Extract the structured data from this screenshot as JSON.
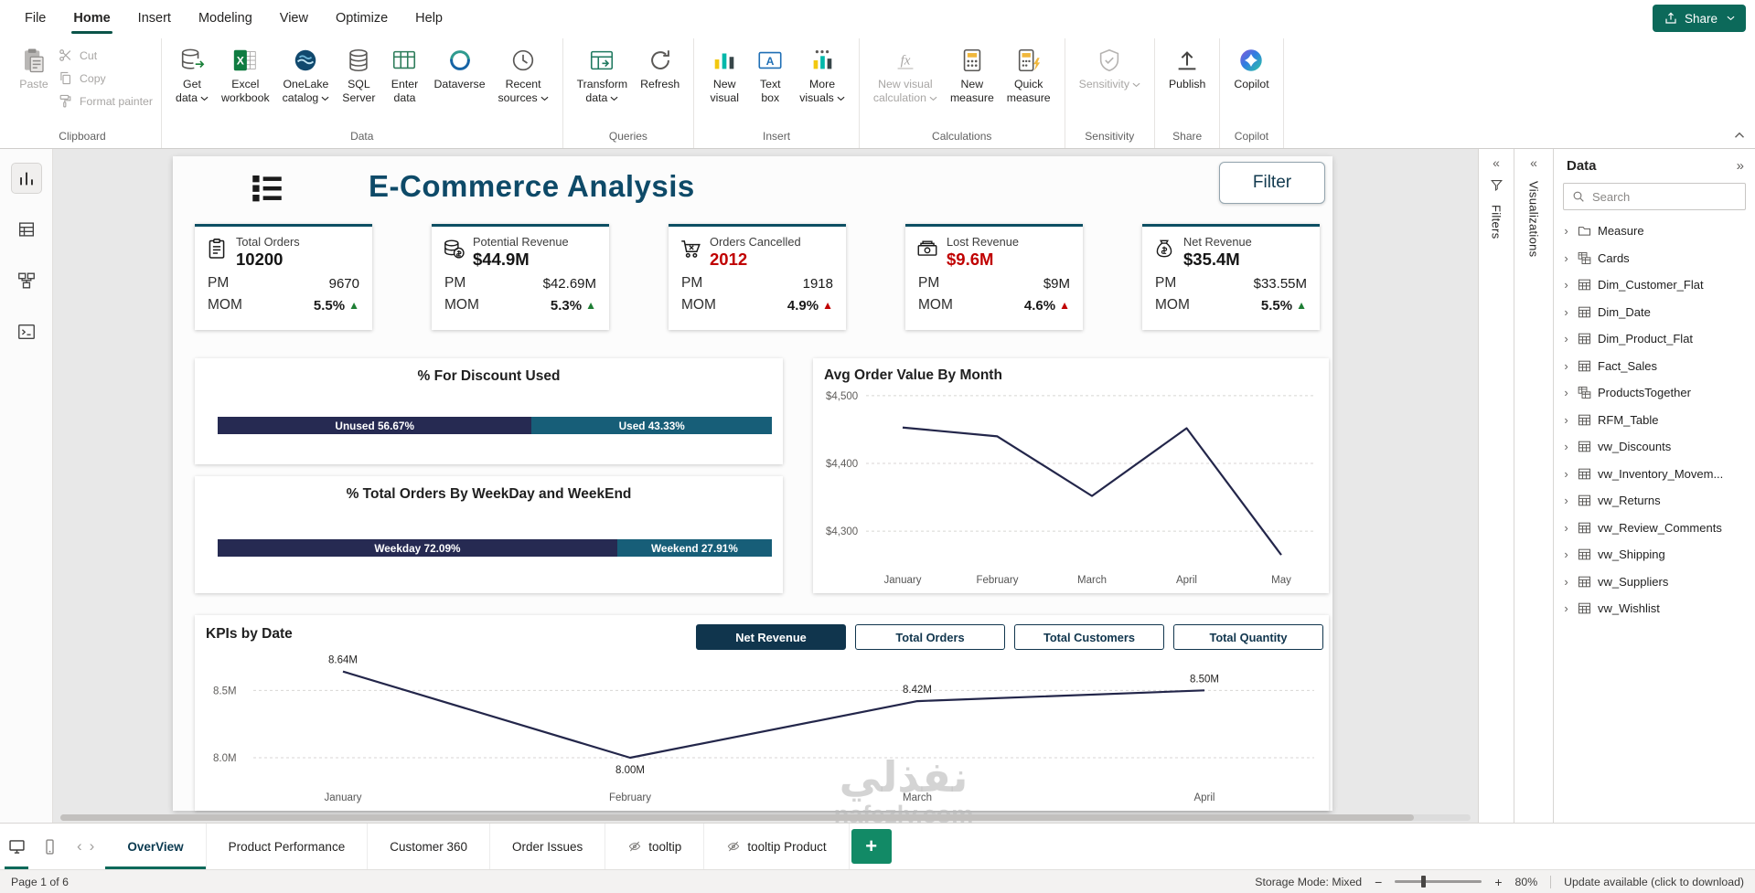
{
  "menubar": {
    "items": [
      "File",
      "Home",
      "Insert",
      "Modeling",
      "View",
      "Optimize",
      "Help"
    ],
    "active": "Home",
    "share_label": "Share"
  },
  "ribbon": {
    "groups": [
      {
        "label": "Clipboard",
        "type": "clipboard",
        "big": {
          "lines": [
            "Paste"
          ],
          "icon": "paste",
          "disabled": true
        },
        "small": [
          {
            "label": "Cut",
            "icon": "scissors",
            "disabled": true
          },
          {
            "label": "Copy",
            "icon": "copy",
            "disabled": true
          },
          {
            "label": "Format painter",
            "icon": "paintbrush",
            "disabled": true
          }
        ]
      },
      {
        "label": "Data",
        "buttons": [
          {
            "lines": [
              "Get",
              "data"
            ],
            "icon": "get-data",
            "dropdown": true
          },
          {
            "lines": [
              "Excel",
              "workbook"
            ],
            "icon": "excel"
          },
          {
            "lines": [
              "OneLake",
              "catalog"
            ],
            "icon": "onelake",
            "dropdown": true
          },
          {
            "lines": [
              "SQL",
              "Server"
            ],
            "icon": "sql-server"
          },
          {
            "lines": [
              "Enter",
              "data"
            ],
            "icon": "enter-data"
          },
          {
            "lines": [
              "Dataverse"
            ],
            "icon": "dataverse"
          },
          {
            "lines": [
              "Recent",
              "sources"
            ],
            "icon": "recent-sources",
            "dropdown": true
          }
        ]
      },
      {
        "label": "Queries",
        "buttons": [
          {
            "lines": [
              "Transform",
              "data"
            ],
            "icon": "transform-data",
            "dropdown": true
          },
          {
            "lines": [
              "Refresh"
            ],
            "icon": "refresh"
          }
        ]
      },
      {
        "label": "Insert",
        "buttons": [
          {
            "lines": [
              "New",
              "visual"
            ],
            "icon": "new-visual"
          },
          {
            "lines": [
              "Text",
              "box"
            ],
            "icon": "text-box"
          },
          {
            "lines": [
              "More",
              "visuals"
            ],
            "icon": "more-visuals",
            "dropdown": true
          }
        ]
      },
      {
        "label": "Calculations",
        "buttons": [
          {
            "lines": [
              "New visual",
              "calculation"
            ],
            "icon": "visual-calculation",
            "dropdown": true,
            "disabled": true
          },
          {
            "lines": [
              "New",
              "measure"
            ],
            "icon": "new-measure"
          },
          {
            "lines": [
              "Quick",
              "measure"
            ],
            "icon": "quick-measure"
          }
        ]
      },
      {
        "label": "Sensitivity",
        "buttons": [
          {
            "lines": [
              "Sensitivity"
            ],
            "icon": "sensitivity",
            "dropdown": true,
            "disabled": true
          }
        ]
      },
      {
        "label": "Share",
        "buttons": [
          {
            "lines": [
              "Publish"
            ],
            "icon": "publish"
          }
        ]
      },
      {
        "label": "Copilot",
        "buttons": [
          {
            "lines": [
              "Copilot"
            ],
            "icon": "copilot"
          }
        ]
      }
    ]
  },
  "left_rail": [
    {
      "name": "report-view",
      "icon": "report-view",
      "active": true
    },
    {
      "name": "table-view",
      "icon": "table-view",
      "active": false
    },
    {
      "name": "model-view",
      "icon": "model-view",
      "active": false
    },
    {
      "name": "dax-query-view",
      "icon": "dax-view",
      "active": false
    }
  ],
  "dashboard": {
    "title": "E-Commerce Analysis",
    "filter_button": "Filter",
    "colors": {
      "title": "#0e4a68",
      "card_accent": "#0d4f63",
      "positive": "#1e7e34",
      "negative": "#c00000",
      "line": "#23264a",
      "button_active_bg": "#10354d"
    },
    "kpi_cards": [
      {
        "icon": "orders",
        "title": "Total Orders",
        "value": "10200",
        "value_red": false,
        "pm_label": "PM",
        "pm_value": "9670",
        "mom_label": "MOM",
        "mom_value": "5.5%",
        "trend": "up",
        "trend_good": true
      },
      {
        "icon": "potential-revenue",
        "title": "Potential Revenue",
        "value": "$44.9M",
        "value_red": false,
        "pm_label": "PM",
        "pm_value": "$42.69M",
        "mom_label": "MOM",
        "mom_value": "5.3%",
        "trend": "up",
        "trend_good": true
      },
      {
        "icon": "orders-cancelled",
        "title": "Orders Cancelled",
        "value": "2012",
        "value_red": true,
        "pm_label": "PM",
        "pm_value": "1918",
        "mom_label": "MOM",
        "mom_value": "4.9%",
        "trend": "up",
        "trend_good": false
      },
      {
        "icon": "lost-revenue",
        "title": "Lost Revenue",
        "value": "$9.6M",
        "value_red": true,
        "pm_label": "PM",
        "pm_value": "$9M",
        "mom_label": "MOM",
        "mom_value": "4.6%",
        "trend": "up",
        "trend_good": false
      },
      {
        "icon": "net-revenue",
        "title": "Net Revenue",
        "value": "$35.4M",
        "value_red": false,
        "pm_label": "PM",
        "pm_value": "$33.55M",
        "mom_label": "MOM",
        "mom_value": "5.5%",
        "trend": "up",
        "trend_good": true
      }
    ]
  },
  "chart_data": [
    {
      "id": "discount",
      "type": "bar",
      "title": "% For Discount Used",
      "categories": [
        "Unused",
        "Used"
      ],
      "values": [
        56.67,
        43.33
      ],
      "labels": [
        "Unused 56.67%",
        "Used 43.33%"
      ],
      "colors": [
        "#262a52",
        "#175e78"
      ]
    },
    {
      "id": "weekday",
      "type": "bar",
      "title": "% Total Orders By WeekDay and WeekEnd",
      "categories": [
        "Weekday",
        "Weekend"
      ],
      "values": [
        72.09,
        27.91
      ],
      "labels": [
        "Weekday 72.09%",
        "Weekend 27.91%"
      ],
      "colors": [
        "#262a52",
        "#175e78"
      ]
    },
    {
      "id": "avg_order",
      "type": "line",
      "title": "Avg Order Value By Month",
      "x": [
        "January",
        "February",
        "March",
        "April",
        "May"
      ],
      "values": [
        4453,
        4440,
        4352,
        4452,
        4265
      ],
      "ylim": [
        4249,
        4512
      ],
      "yticks": [
        {
          "label": "$4,500",
          "value": 4500
        },
        {
          "label": "$4,400",
          "value": 4400
        },
        {
          "label": "$4,300",
          "value": 4300
        }
      ],
      "grid": true,
      "line_color": "#23264a"
    },
    {
      "id": "kpis",
      "type": "line",
      "title": "KPIs by Date",
      "x": [
        "January",
        "February",
        "March",
        "April"
      ],
      "values": [
        8.64,
        8.0,
        8.42,
        8.5
      ],
      "point_labels": [
        "8.64M",
        "8.00M",
        "8.42M",
        "8.50M"
      ],
      "label_below": [
        false,
        true,
        false,
        false
      ],
      "ylim": [
        7.81,
        8.76
      ],
      "yticks": [
        {
          "label": "8.5M",
          "value": 8.5
        },
        {
          "label": "8.0M",
          "value": 8.0
        }
      ],
      "grid": true,
      "line_color": "#23264a",
      "buttons": [
        "Net Revenue",
        "Total Orders",
        "Total Customers",
        "Total Quantity"
      ],
      "active_button": "Net Revenue"
    }
  ],
  "filters_panel": {
    "title": "Filters"
  },
  "viz_panel": {
    "title": "Visualizations"
  },
  "data_panel": {
    "title": "Data",
    "search_placeholder": "Search",
    "fields": [
      {
        "name": "Measure",
        "icon": "folder"
      },
      {
        "name": "Cards",
        "icon": "table-group"
      },
      {
        "name": "Dim_Customer_Flat",
        "icon": "table"
      },
      {
        "name": "Dim_Date",
        "icon": "table"
      },
      {
        "name": "Dim_Product_Flat",
        "icon": "table"
      },
      {
        "name": "Fact_Sales",
        "icon": "table"
      },
      {
        "name": "ProductsTogether",
        "icon": "table-group"
      },
      {
        "name": "RFM_Table",
        "icon": "table"
      },
      {
        "name": "vw_Discounts",
        "icon": "table"
      },
      {
        "name": "vw_Inventory_Movem...",
        "icon": "table"
      },
      {
        "name": "vw_Returns",
        "icon": "table"
      },
      {
        "name": "vw_Review_Comments",
        "icon": "table"
      },
      {
        "name": "vw_Shipping",
        "icon": "table"
      },
      {
        "name": "vw_Suppliers",
        "icon": "table"
      },
      {
        "name": "vw_Wishlist",
        "icon": "table"
      }
    ]
  },
  "tabbar": {
    "tabs": [
      {
        "label": "OverView",
        "active": true
      },
      {
        "label": "Product Performance",
        "active": false
      },
      {
        "label": "Customer 360",
        "active": false
      },
      {
        "label": "Order Issues",
        "active": false
      },
      {
        "label": "tooltip",
        "icon": "tooltip-hidden",
        "active": false
      },
      {
        "label": "tooltip Product",
        "icon": "tooltip-hidden",
        "active": false
      }
    ],
    "add_button": "+"
  },
  "statusbar": {
    "page": "Page 1 of 6",
    "storage": "Storage Mode: Mixed",
    "zoom": "80%",
    "update": "Update available (click to download)"
  },
  "watermark": {
    "line1": "نفذلي",
    "line2": "nafezly.com"
  }
}
